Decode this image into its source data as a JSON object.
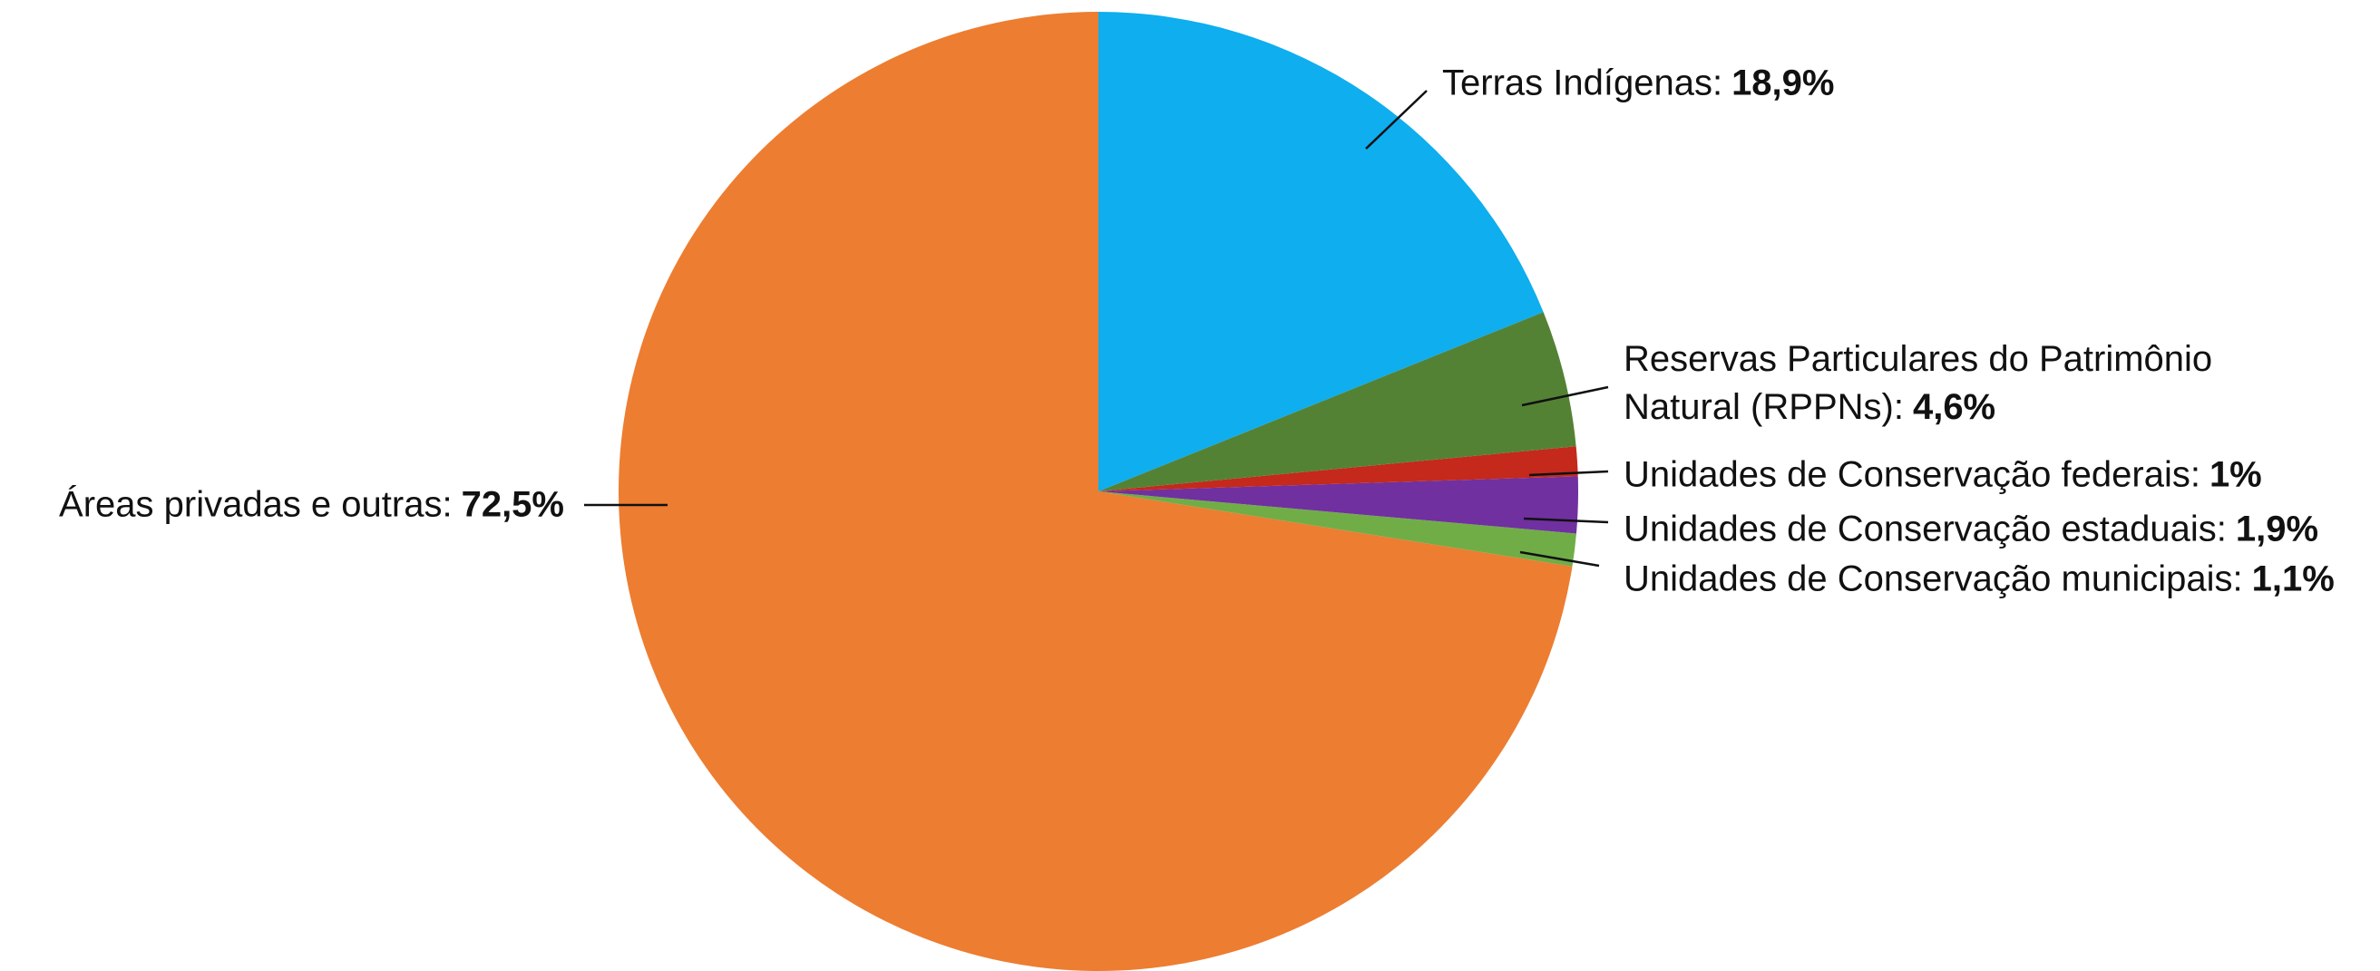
{
  "chart_data": {
    "type": "pie",
    "categories": [
      "Terras Indígenas:",
      "Reservas Particulares do Patrimônio Natural (RPPNs):",
      "Unidades de Conservação federais:",
      "Unidades de Conservação estaduais:",
      "Unidades de Conservação municipais:",
      "Áreas privadas e outras:"
    ],
    "values": [
      18.9,
      4.6,
      1,
      1.9,
      1.1,
      72.5
    ],
    "value_labels": [
      "18,9%",
      "4,6%",
      "1%",
      "1,9%",
      "1,1%",
      "72,5%"
    ],
    "colors": [
      "#0eaeef",
      "#548235",
      "#c4291c",
      "#7030a0",
      "#70ad47",
      "#ed7d31"
    ]
  }
}
